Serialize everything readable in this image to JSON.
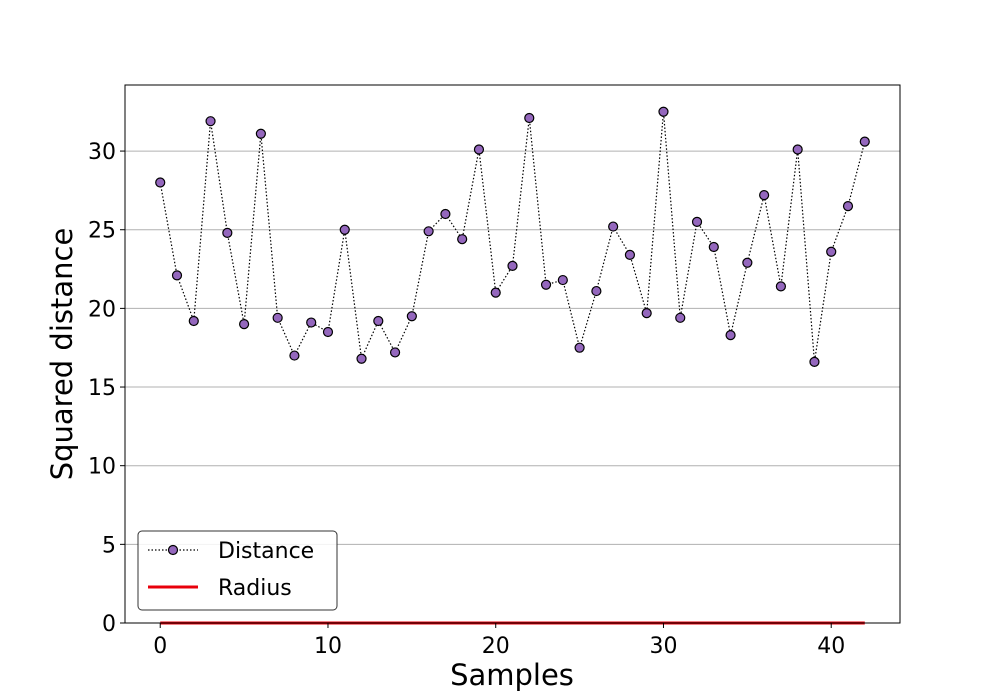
{
  "chart_data": {
    "type": "line",
    "xlabel": "Samples",
    "ylabel": "Squared distance",
    "xlim": [
      -2.1,
      44.1
    ],
    "ylim": [
      0,
      34.2
    ],
    "x_ticks": [
      0,
      10,
      20,
      30,
      40
    ],
    "y_ticks": [
      0,
      5,
      10,
      15,
      20,
      25,
      30
    ],
    "grid": "horizontal",
    "legend_position": "lower-left",
    "series": [
      {
        "name": "Distance",
        "style": "dotted-line-with-circle-markers",
        "line_color": "#000000",
        "marker_fill": "#9467bd",
        "marker_edge": "#000000",
        "x": [
          0,
          1,
          2,
          3,
          4,
          5,
          6,
          7,
          8,
          9,
          10,
          11,
          12,
          13,
          14,
          15,
          16,
          17,
          18,
          19,
          20,
          21,
          22,
          23,
          24,
          25,
          26,
          27,
          28,
          29,
          30,
          31,
          32,
          33,
          34,
          35,
          36,
          37,
          38,
          39,
          40,
          41,
          42
        ],
        "y": [
          28.0,
          22.1,
          19.2,
          31.9,
          24.8,
          19.0,
          31.1,
          19.4,
          17.0,
          19.1,
          18.5,
          25.0,
          16.8,
          19.2,
          17.2,
          19.5,
          24.9,
          26.0,
          24.4,
          30.1,
          21.0,
          22.7,
          32.1,
          21.5,
          21.8,
          17.5,
          21.1,
          25.2,
          23.4,
          19.7,
          32.5,
          19.4,
          25.5,
          23.9,
          18.3,
          22.9,
          27.2,
          21.4,
          30.1,
          16.6,
          23.6,
          26.5,
          30.6
        ]
      },
      {
        "name": "Radius",
        "style": "solid-line",
        "line_color": "#e8000b",
        "x": [
          0,
          42
        ],
        "y": [
          0,
          0
        ]
      }
    ]
  }
}
